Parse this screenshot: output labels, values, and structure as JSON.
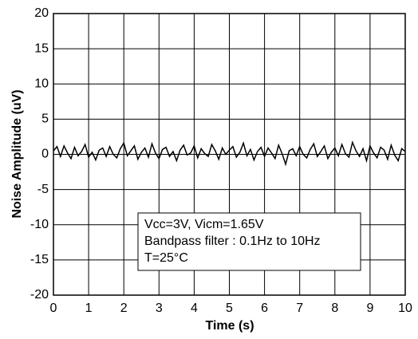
{
  "chart_data": {
    "type": "line",
    "xlabel": "Time (s)",
    "ylabel": "Noise Amplitude (uV)",
    "annotations": [
      "Vcc=3V, Vicm=1.65V",
      "Bandpass filter : 0.1Hz to 10Hz",
      "T=25°C"
    ],
    "color": "#000000",
    "grid": true,
    "xlim": [
      0,
      10
    ],
    "xticks": [
      0,
      1,
      2,
      3,
      4,
      5,
      6,
      7,
      8,
      9,
      10
    ],
    "ylim": [
      -20,
      20
    ],
    "yticks": [
      -20,
      -15,
      -10,
      -5,
      0,
      5,
      10,
      15,
      20
    ],
    "x": [
      0.0,
      0.1,
      0.2,
      0.3,
      0.4,
      0.5,
      0.6,
      0.7,
      0.8,
      0.9,
      1.0,
      1.1,
      1.2,
      1.3,
      1.4,
      1.5,
      1.6,
      1.7,
      1.8,
      1.9,
      2.0,
      2.1,
      2.2,
      2.3,
      2.4,
      2.5,
      2.6,
      2.7,
      2.8,
      2.9,
      3.0,
      3.1,
      3.2,
      3.3,
      3.4,
      3.5,
      3.6,
      3.7,
      3.8,
      3.9,
      4.0,
      4.1,
      4.2,
      4.3,
      4.4,
      4.5,
      4.6,
      4.7,
      4.8,
      4.9,
      5.0,
      5.1,
      5.2,
      5.3,
      5.4,
      5.5,
      5.6,
      5.7,
      5.8,
      5.9,
      6.0,
      6.1,
      6.2,
      6.3,
      6.4,
      6.5,
      6.6,
      6.7,
      6.8,
      6.9,
      7.0,
      7.1,
      7.2,
      7.3,
      7.4,
      7.5,
      7.6,
      7.7,
      7.8,
      7.9,
      8.0,
      8.1,
      8.2,
      8.3,
      8.4,
      8.5,
      8.6,
      8.7,
      8.8,
      8.9,
      9.0,
      9.1,
      9.2,
      9.3,
      9.4,
      9.5,
      9.6,
      9.7,
      9.8,
      9.9,
      10.0
    ],
    "values": [
      0.5,
      1.1,
      -0.3,
      1.2,
      0.2,
      -0.6,
      1.0,
      -0.2,
      0.4,
      1.4,
      -0.4,
      0.3,
      -0.8,
      0.6,
      0.9,
      -0.3,
      1.1,
      0.0,
      -0.5,
      0.8,
      1.6,
      -0.2,
      0.5,
      1.2,
      -0.7,
      0.3,
      0.9,
      -0.4,
      1.5,
      0.2,
      -0.6,
      0.7,
      1.0,
      -0.3,
      0.4,
      -0.9,
      0.6,
      1.3,
      -0.1,
      0.2,
      1.2,
      -0.5,
      0.8,
      0.1,
      -0.3,
      1.4,
      0.5,
      -0.7,
      0.9,
      0.0,
      0.6,
      1.1,
      -0.4,
      0.3,
      1.6,
      -0.2,
      0.7,
      -0.8,
      0.4,
      1.0,
      -0.3,
      0.9,
      0.2,
      -0.6,
      1.3,
      0.1,
      -1.4,
      0.5,
      0.8,
      -0.2,
      1.1,
      0.0,
      -0.5,
      0.7,
      1.5,
      -0.3,
      0.4,
      1.2,
      -0.6,
      0.3,
      0.9,
      -0.2,
      1.4,
      0.1,
      -0.4,
      1.7,
      0.5,
      -0.3,
      0.8,
      -0.9,
      1.2,
      0.2,
      -0.5,
      1.0,
      0.6,
      -0.7,
      1.3,
      -0.1,
      -0.9,
      0.8,
      0.4
    ]
  }
}
